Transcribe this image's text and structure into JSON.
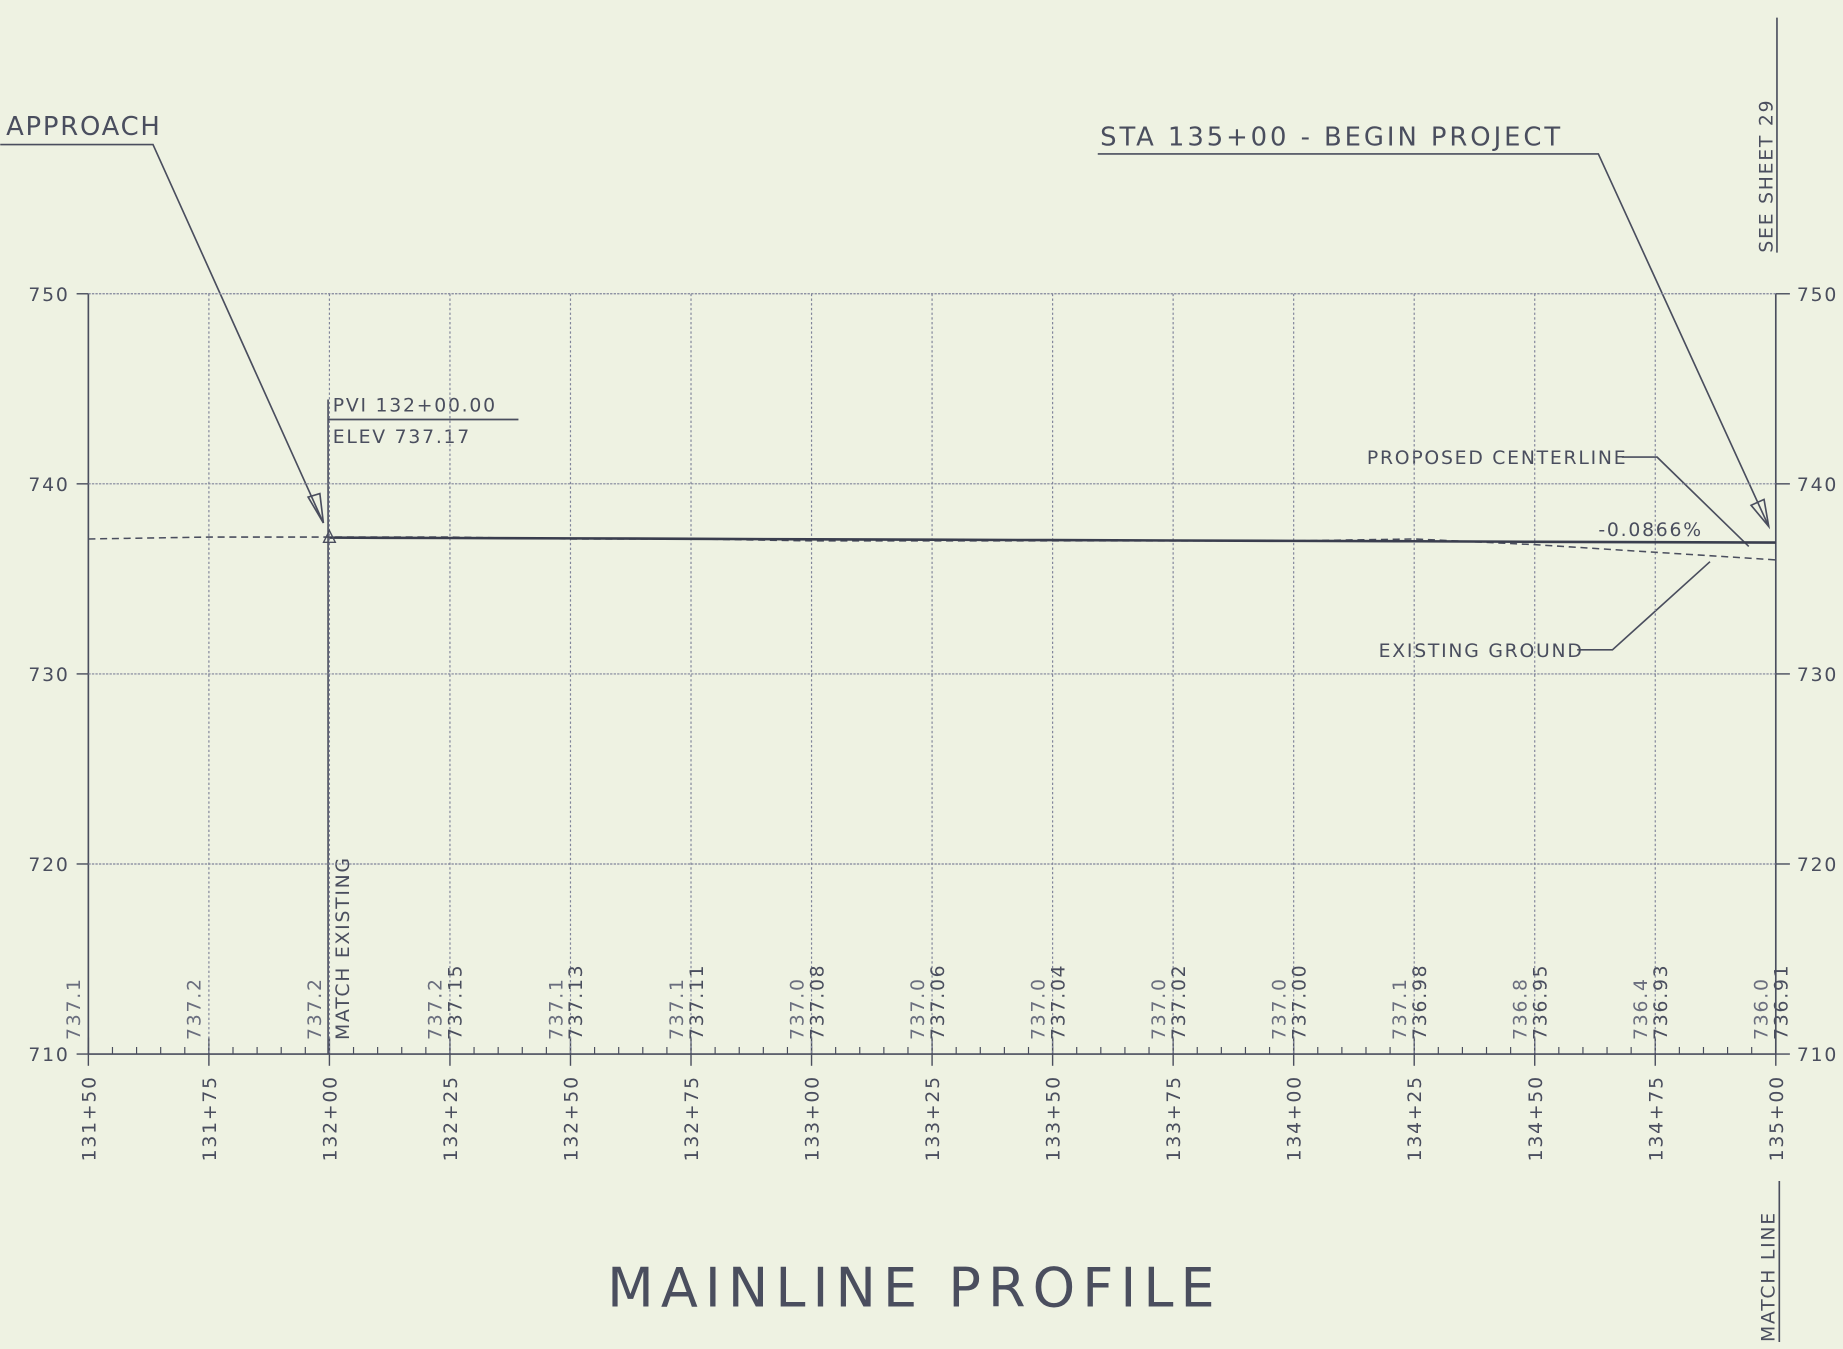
{
  "chart_data": {
    "type": "line",
    "title": "MAINLINE PROFILE",
    "x": [
      13150,
      13175,
      13200,
      13225,
      13250,
      13275,
      13300,
      13325,
      13350,
      13375,
      13400,
      13425,
      13450,
      13475,
      13500
    ],
    "xlim": [
      13150,
      13500
    ],
    "xticks": [
      {
        "value": 13150,
        "label": "131+50"
      },
      {
        "value": 13175,
        "label": "131+75"
      },
      {
        "value": 13200,
        "label": "132+00"
      },
      {
        "value": 13225,
        "label": "132+25"
      },
      {
        "value": 13250,
        "label": "132+50"
      },
      {
        "value": 13275,
        "label": "132+75"
      },
      {
        "value": 13300,
        "label": "133+00"
      },
      {
        "value": 13325,
        "label": "133+25"
      },
      {
        "value": 13350,
        "label": "133+50"
      },
      {
        "value": 13375,
        "label": "133+75"
      },
      {
        "value": 13400,
        "label": "134+00"
      },
      {
        "value": 13425,
        "label": "134+25"
      },
      {
        "value": 13450,
        "label": "134+50"
      },
      {
        "value": 13475,
        "label": "134+75"
      },
      {
        "value": 13500,
        "label": "135+00"
      }
    ],
    "ylim": [
      710,
      750
    ],
    "yticks": [
      710,
      720,
      730,
      740,
      750
    ],
    "y2lim": [
      710,
      750
    ],
    "y2ticks": [
      710,
      720,
      730,
      740,
      750
    ],
    "grid": true,
    "series": [
      {
        "name": "EXISTING GROUND",
        "color": "#4a4e5e",
        "dash": true,
        "values": [
          737.1,
          737.2,
          737.2,
          737.2,
          737.1,
          737.1,
          737.0,
          737.0,
          737.0,
          737.0,
          737.0,
          737.1,
          736.8,
          736.4,
          736.0
        ],
        "value_labels": [
          "737.1",
          "737.2",
          "737.2",
          "737.2",
          "737.1",
          "737.1",
          "737.0",
          "737.0",
          "737.0",
          "737.0",
          "737.0",
          "737.1",
          "736.8",
          "736.4",
          "736.0"
        ]
      },
      {
        "name": "PROPOSED CENTERLINE",
        "color": "#3a3e4e",
        "dash": false,
        "values": [
          null,
          null,
          737.17,
          737.15,
          737.13,
          737.11,
          737.08,
          737.06,
          737.04,
          737.02,
          737.0,
          736.98,
          736.95,
          736.93,
          736.91
        ],
        "value_labels": [
          null,
          null,
          null,
          "737.15",
          "737.13",
          "737.11",
          "737.08",
          "737.06",
          "737.04",
          "737.02",
          "737.00",
          "736.98",
          "736.95",
          "736.93",
          "736.91"
        ]
      }
    ],
    "annotations": {
      "approach": "APPROACH",
      "begin_project": "STA 135+00 - BEGIN PROJECT",
      "pvi": "PVI 132+00.00",
      "elev": "ELEV 737.17",
      "match_existing": "MATCH EXISTING",
      "grade": "-0.0866%",
      "see_sheet": "SEE SHEET 29",
      "match_line": "MATCH LINE"
    }
  }
}
